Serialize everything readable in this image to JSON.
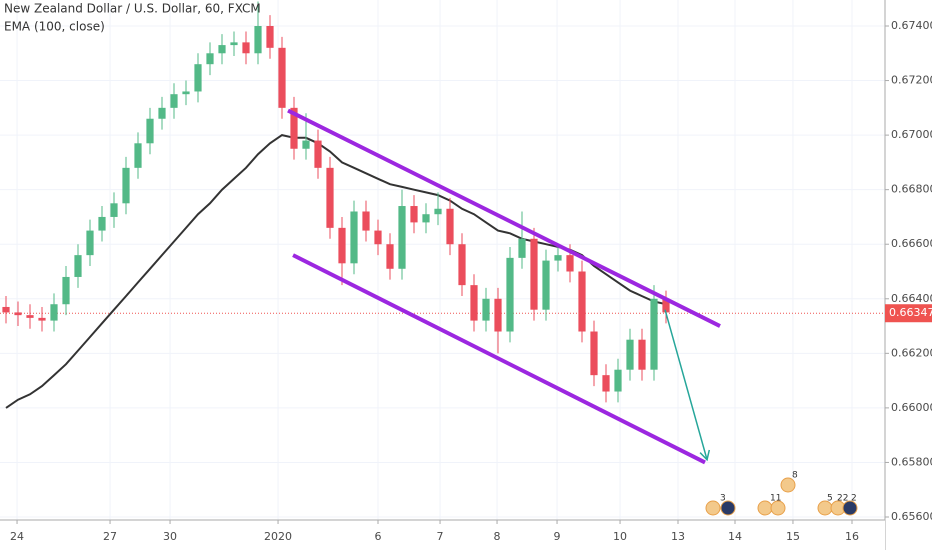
{
  "chart_data": {
    "type": "candlestick",
    "title": "New Zealand Dollar / U.S. Dollar, 60, FXCM",
    "subtitle": "EMA (100, close)",
    "up_color": "#53b987",
    "down_color": "#eb4d5c",
    "candles": [
      [
        0.6637,
        0.6641,
        0.6631,
        0.6635
      ],
      [
        0.6635,
        0.6639,
        0.663,
        0.6634
      ],
      [
        0.6634,
        0.6638,
        0.6629,
        0.6633
      ],
      [
        0.6633,
        0.6637,
        0.6628,
        0.6632
      ],
      [
        0.6632,
        0.6642,
        0.6628,
        0.6638
      ],
      [
        0.6638,
        0.6652,
        0.6634,
        0.6648
      ],
      [
        0.6648,
        0.666,
        0.6644,
        0.6656
      ],
      [
        0.6656,
        0.6669,
        0.6652,
        0.6665
      ],
      [
        0.6665,
        0.6674,
        0.6661,
        0.667
      ],
      [
        0.667,
        0.6679,
        0.6666,
        0.6675
      ],
      [
        0.6675,
        0.6692,
        0.6671,
        0.6688
      ],
      [
        0.6688,
        0.6701,
        0.6684,
        0.6697
      ],
      [
        0.6697,
        0.671,
        0.6693,
        0.6706
      ],
      [
        0.6706,
        0.6714,
        0.6702,
        0.671
      ],
      [
        0.671,
        0.6719,
        0.6706,
        0.6715
      ],
      [
        0.6715,
        0.672,
        0.6711,
        0.6716
      ],
      [
        0.6716,
        0.673,
        0.6712,
        0.6726
      ],
      [
        0.6726,
        0.6734,
        0.6722,
        0.673
      ],
      [
        0.673,
        0.6737,
        0.6726,
        0.6733
      ],
      [
        0.6733,
        0.6738,
        0.6729,
        0.6734
      ],
      [
        0.6734,
        0.6738,
        0.6726,
        0.673
      ],
      [
        0.673,
        0.6749,
        0.6726,
        0.674
      ],
      [
        0.674,
        0.6744,
        0.6728,
        0.6732
      ],
      [
        0.6732,
        0.6736,
        0.6706,
        0.671
      ],
      [
        0.671,
        0.6714,
        0.6691,
        0.6695
      ],
      [
        0.6695,
        0.6708,
        0.6691,
        0.6698
      ],
      [
        0.6698,
        0.6702,
        0.6684,
        0.6688
      ],
      [
        0.6688,
        0.6692,
        0.6662,
        0.6666
      ],
      [
        0.6666,
        0.667,
        0.6645,
        0.6653
      ],
      [
        0.6653,
        0.6676,
        0.6649,
        0.6672
      ],
      [
        0.6672,
        0.6676,
        0.6661,
        0.6665
      ],
      [
        0.6665,
        0.6669,
        0.6656,
        0.666
      ],
      [
        0.666,
        0.6664,
        0.6647,
        0.6651
      ],
      [
        0.6651,
        0.668,
        0.6647,
        0.6674
      ],
      [
        0.6674,
        0.6678,
        0.6664,
        0.6668
      ],
      [
        0.6668,
        0.6675,
        0.6664,
        0.6671
      ],
      [
        0.6671,
        0.6679,
        0.6667,
        0.6673
      ],
      [
        0.6673,
        0.6677,
        0.6656,
        0.666
      ],
      [
        0.666,
        0.6664,
        0.6641,
        0.6645
      ],
      [
        0.6645,
        0.6649,
        0.6628,
        0.6632
      ],
      [
        0.6632,
        0.6644,
        0.6628,
        0.664
      ],
      [
        0.664,
        0.6644,
        0.662,
        0.6628
      ],
      [
        0.6628,
        0.6659,
        0.6624,
        0.6655
      ],
      [
        0.6655,
        0.6672,
        0.6651,
        0.6662
      ],
      [
        0.6662,
        0.6666,
        0.6632,
        0.6636
      ],
      [
        0.6636,
        0.6658,
        0.6632,
        0.6654
      ],
      [
        0.6654,
        0.666,
        0.665,
        0.6656
      ],
      [
        0.6656,
        0.666,
        0.6646,
        0.665
      ],
      [
        0.665,
        0.6654,
        0.6624,
        0.6628
      ],
      [
        0.6628,
        0.6632,
        0.6608,
        0.6612
      ],
      [
        0.6612,
        0.6616,
        0.6602,
        0.6606
      ],
      [
        0.6606,
        0.6618,
        0.6602,
        0.6614
      ],
      [
        0.6614,
        0.6629,
        0.661,
        0.6625
      ],
      [
        0.6625,
        0.6629,
        0.661,
        0.6614
      ],
      [
        0.6614,
        0.6645,
        0.661,
        0.664
      ],
      [
        0.664,
        0.6643,
        0.6631,
        0.6635
      ]
    ],
    "ema": {
      "color": "#333333",
      "values": [
        0.66,
        0.6603,
        0.6605,
        0.6608,
        0.6612,
        0.6616,
        0.6621,
        0.6626,
        0.6631,
        0.6636,
        0.6641,
        0.6646,
        0.6651,
        0.6656,
        0.6661,
        0.6666,
        0.6671,
        0.6675,
        0.668,
        0.6684,
        0.6688,
        0.6693,
        0.6697,
        0.67,
        0.6699,
        0.6699,
        0.6697,
        0.6694,
        0.669,
        0.6688,
        0.6686,
        0.6684,
        0.6682,
        0.6681,
        0.668,
        0.6679,
        0.6678,
        0.6676,
        0.6673,
        0.6671,
        0.6668,
        0.6665,
        0.6664,
        0.6662,
        0.6661,
        0.666,
        0.6659,
        0.6658,
        0.6656,
        0.6652,
        0.6649,
        0.6646,
        0.6643,
        0.6641,
        0.6639,
        0.6638
      ]
    },
    "trendlines": [
      {
        "color": "#9c27e0",
        "x": [
          23.5,
          59.5
        ],
        "y": [
          0.6709,
          0.663
        ]
      },
      {
        "color": "#9c27e0",
        "x": [
          23.92,
          58.25
        ],
        "y": [
          0.6656,
          0.658
        ]
      }
    ],
    "arrow": {
      "color": "#26a69a",
      "x": [
        54.92,
        58.42
      ],
      "y": [
        0.6636,
        0.6581
      ]
    },
    "last_price": 0.66347,
    "last_price_color": "#ef5350",
    "xlim": [
      -0.5,
      73.25
    ],
    "ylim": [
      0.656,
      0.674
    ],
    "xticks": [
      {
        "value": 0.92,
        "label": "24"
      },
      {
        "value": 8.67,
        "label": "27"
      },
      {
        "value": 13.67,
        "label": "30"
      },
      {
        "value": 22.67,
        "label": "2020"
      },
      {
        "value": 31,
        "label": "6"
      },
      {
        "value": 36.17,
        "label": "7"
      },
      {
        "value": 40.92,
        "label": "8"
      },
      {
        "value": 45.92,
        "label": "9"
      },
      {
        "value": 51.17,
        "label": "10"
      },
      {
        "value": 56,
        "label": "13"
      },
      {
        "value": 60.75,
        "label": "14"
      },
      {
        "value": 65.58,
        "label": "15"
      },
      {
        "value": 70.5,
        "label": "16"
      }
    ],
    "yticks": [
      {
        "value": 0.656,
        "label": "0.65600"
      },
      {
        "value": 0.658,
        "label": "0.65800"
      },
      {
        "value": 0.66,
        "label": "0.66000"
      },
      {
        "value": 0.662,
        "label": "0.66200"
      },
      {
        "value": 0.664,
        "label": "0.66400"
      },
      {
        "value": 0.666,
        "label": "0.66600"
      },
      {
        "value": 0.668,
        "label": "0.66800"
      },
      {
        "value": 0.67,
        "label": "0.67000"
      },
      {
        "value": 0.672,
        "label": "0.67200"
      },
      {
        "value": 0.674,
        "label": "0.67400"
      }
    ],
    "grid": true,
    "events": [
      "3",
      "11",
      "8",
      "5",
      "22",
      "2"
    ]
  }
}
